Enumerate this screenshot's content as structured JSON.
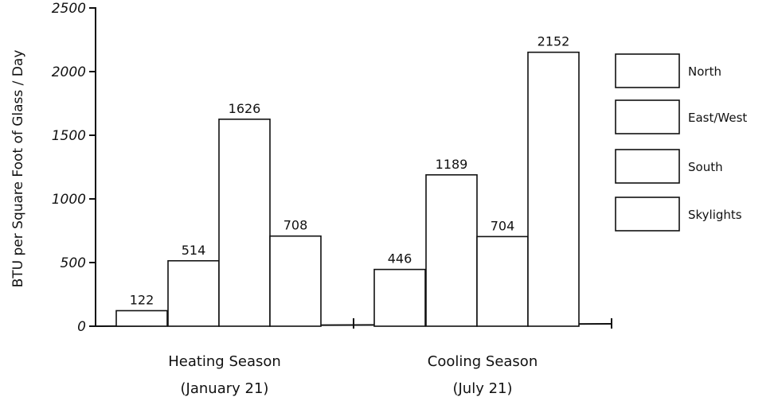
{
  "chart_data": {
    "type": "bar",
    "title": "",
    "xlabel": "",
    "ylabel": "BTU per Square Foot of Glass / Day",
    "ylim": [
      0,
      2500
    ],
    "yticks": [
      0,
      500,
      1000,
      1500,
      2000,
      2500
    ],
    "ytick_labels": [
      "0",
      "500",
      "1000",
      "1500",
      "2000",
      "2500"
    ],
    "grid": false,
    "legend_position": "right",
    "categories": [
      {
        "line1": "Heating Season",
        "line2": "(January 21)"
      },
      {
        "line1": "Cooling Season",
        "line2": "(July 21)"
      }
    ],
    "series": [
      {
        "name": "North",
        "values": [
          122,
          446
        ]
      },
      {
        "name": "East/West",
        "values": [
          514,
          1189
        ]
      },
      {
        "name": "South",
        "values": [
          1626,
          704
        ]
      },
      {
        "name": "Skylights",
        "values": [
          708,
          2152
        ]
      }
    ],
    "data_labels": [
      [
        "122",
        "446"
      ],
      [
        "514",
        "1189"
      ],
      [
        "1626",
        "704"
      ],
      [
        "708",
        "2152"
      ]
    ],
    "colors": {
      "bar_fill": "#ffffff",
      "bar_stroke": "#111111",
      "axis": "#111111"
    }
  }
}
